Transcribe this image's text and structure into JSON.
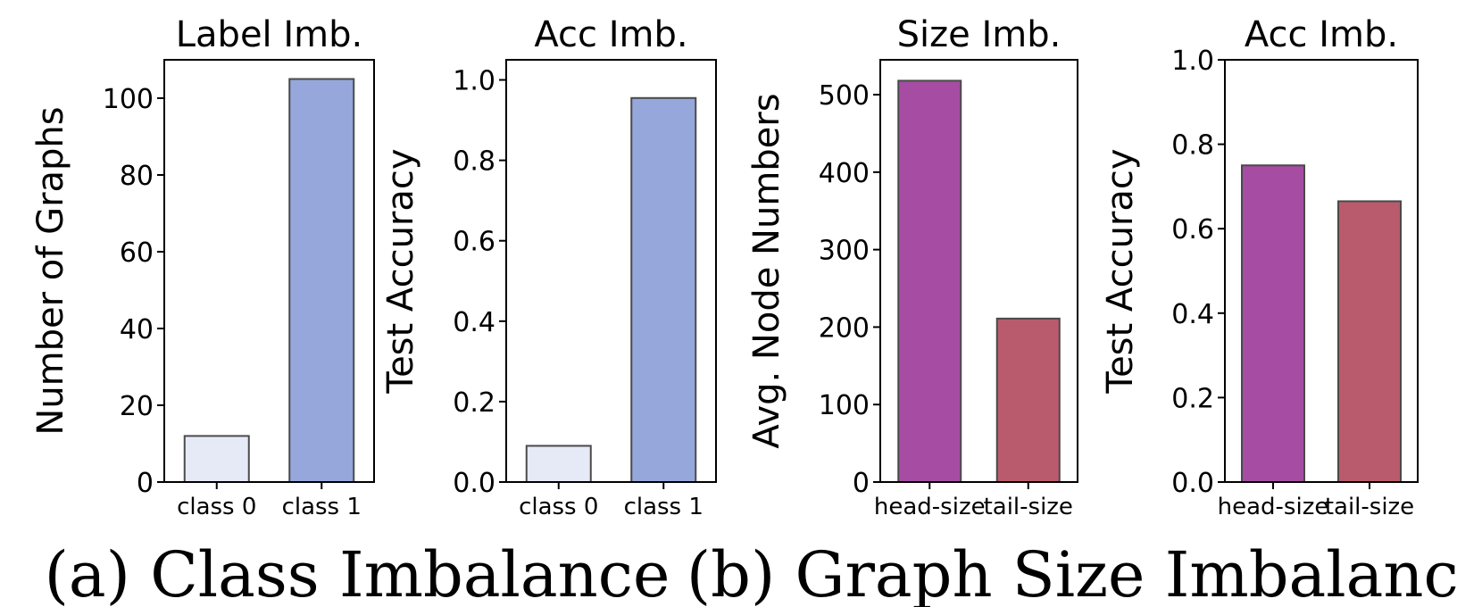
{
  "captions": {
    "a": "(a) Class Imbalance",
    "b": "(b) Graph Size Imbalance"
  },
  "colors": {
    "class0": "#e6eaf7",
    "class1": "#95a7db",
    "head": "#a64da3",
    "tail": "#b95b6c"
  },
  "chart_data": [
    {
      "type": "bar",
      "title": "Label Imb.",
      "xlabel": "",
      "ylabel": "Number of Graphs",
      "categories": [
        "class 0",
        "class 1"
      ],
      "values": [
        12,
        105
      ],
      "ylim": [
        0,
        110
      ],
      "yticks": [
        0,
        20,
        40,
        60,
        80,
        100
      ],
      "ytick_labels": [
        "0",
        "20",
        "40",
        "60",
        "80",
        "100"
      ],
      "bar_colors": [
        "#e6eaf7",
        "#95a7db"
      ],
      "grid": false
    },
    {
      "type": "bar",
      "title": "Acc Imb.",
      "xlabel": "",
      "ylabel": "Test Accuracy",
      "categories": [
        "class 0",
        "class 1"
      ],
      "values": [
        0.09,
        0.955
      ],
      "ylim": [
        0,
        1.05
      ],
      "yticks": [
        0,
        0.2,
        0.4,
        0.6,
        0.8,
        1.0
      ],
      "ytick_labels": [
        "0.0",
        "0.2",
        "0.4",
        "0.6",
        "0.8",
        "1.0"
      ],
      "bar_colors": [
        "#e6eaf7",
        "#95a7db"
      ],
      "grid": false
    },
    {
      "type": "bar",
      "title": "Size Imb.",
      "xlabel": "",
      "ylabel": "Avg. Node Numbers",
      "categories": [
        "head-size",
        "tail-size"
      ],
      "values": [
        518,
        211
      ],
      "ylim": [
        0,
        545
      ],
      "yticks": [
        0,
        100,
        200,
        300,
        400,
        500
      ],
      "ytick_labels": [
        "0",
        "100",
        "200",
        "300",
        "400",
        "500"
      ],
      "bar_colors": [
        "#a64da3",
        "#b95b6c"
      ],
      "grid": false
    },
    {
      "type": "bar",
      "title": "Acc Imb.",
      "xlabel": "",
      "ylabel": "Test Accuracy",
      "categories": [
        "head-size",
        "tail-size"
      ],
      "values": [
        0.75,
        0.665
      ],
      "ylim": [
        0,
        1.0
      ],
      "yticks": [
        0,
        0.2,
        0.4,
        0.6,
        0.8,
        1.0
      ],
      "ytick_labels": [
        "0.0",
        "0.2",
        "0.4",
        "0.6",
        "0.8",
        "1.0"
      ],
      "bar_colors": [
        "#a64da3",
        "#b95b6c"
      ],
      "grid": false
    }
  ]
}
